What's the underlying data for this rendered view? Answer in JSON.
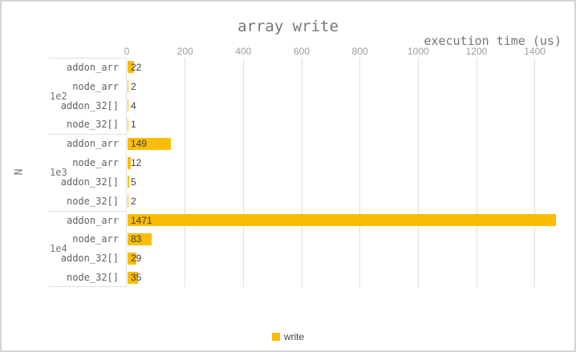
{
  "colors": {
    "bar": "#FBBC05",
    "grid": "#e0e0e0",
    "frame_border": "#d4d4d4",
    "title_text": "#757575",
    "tick_text": "#9e9e9e",
    "category_text": "#616161",
    "value_text": "#3f3f3f",
    "legend_text": "#424242"
  },
  "chart_data": {
    "type": "bar",
    "orientation": "horizontal",
    "title": "array write",
    "xlabel": "execution time (us)",
    "ylabel": "N",
    "x_ticks": [
      0,
      200,
      400,
      600,
      800,
      1000,
      1200,
      1400
    ],
    "xlim": [
      0,
      1492
    ],
    "grid": true,
    "legend_position": "bottom",
    "series_name": "write",
    "bar_color": "#FBBC05",
    "groups": [
      {
        "label": "1e2",
        "items": [
          {
            "name": "addon_arr",
            "value": 22
          },
          {
            "name": "node_arr",
            "value": 2
          },
          {
            "name": "addon_32[]",
            "value": 4
          },
          {
            "name": "node_32[]",
            "value": 1
          }
        ]
      },
      {
        "label": "1e3",
        "items": [
          {
            "name": "addon_arr",
            "value": 149
          },
          {
            "name": "node_arr",
            "value": 12
          },
          {
            "name": "addon_32[]",
            "value": 5
          },
          {
            "name": "node_32[]",
            "value": 2
          }
        ]
      },
      {
        "label": "1e4",
        "items": [
          {
            "name": "addon_arr",
            "value": 1471
          },
          {
            "name": "node_arr",
            "value": 83
          },
          {
            "name": "addon_32[]",
            "value": 29
          },
          {
            "name": "node_32[]",
            "value": 35
          }
        ]
      }
    ]
  }
}
